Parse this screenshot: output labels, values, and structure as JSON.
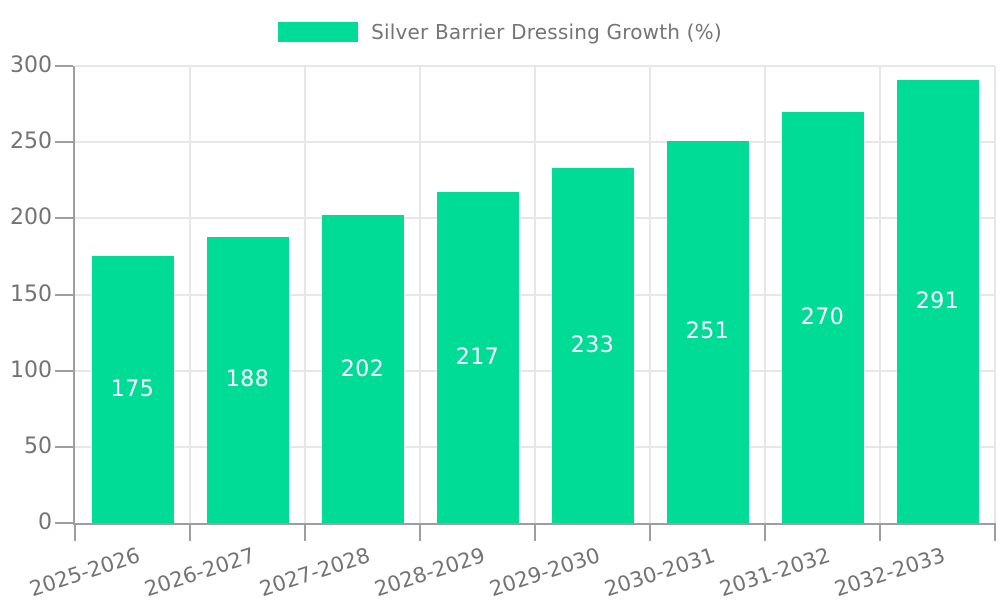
{
  "chart_data": {
    "type": "bar",
    "title": "Silver Barrier Dressing Growth (%)",
    "categories": [
      "2025-2026",
      "2026-2027",
      "2027-2028",
      "2028-2029",
      "2029-2030",
      "2030-2031",
      "2031-2032",
      "2032-2033"
    ],
    "values": [
      175,
      188,
      202,
      217,
      233,
      251,
      270,
      291
    ],
    "value_labels": [
      "175",
      "188",
      "202",
      "217",
      "233",
      "251",
      "270",
      "291"
    ],
    "xlabel": "",
    "ylabel": "",
    "ylim": [
      0,
      300
    ],
    "yticks": [
      0,
      50,
      100,
      150,
      200,
      250,
      300
    ],
    "ytick_labels": [
      "0",
      "50",
      "100",
      "150",
      "200",
      "250",
      "300"
    ],
    "grid": true,
    "legend_position": "top-center",
    "colors": {
      "bar_fill": "#00DC95",
      "bar_value_text": "#ffffff",
      "grid_line": "#e7e7e7",
      "axis_line": "#9e9e9e",
      "tick_text": "#737373",
      "legend_text": "#757575",
      "background": "#ffffff"
    }
  }
}
